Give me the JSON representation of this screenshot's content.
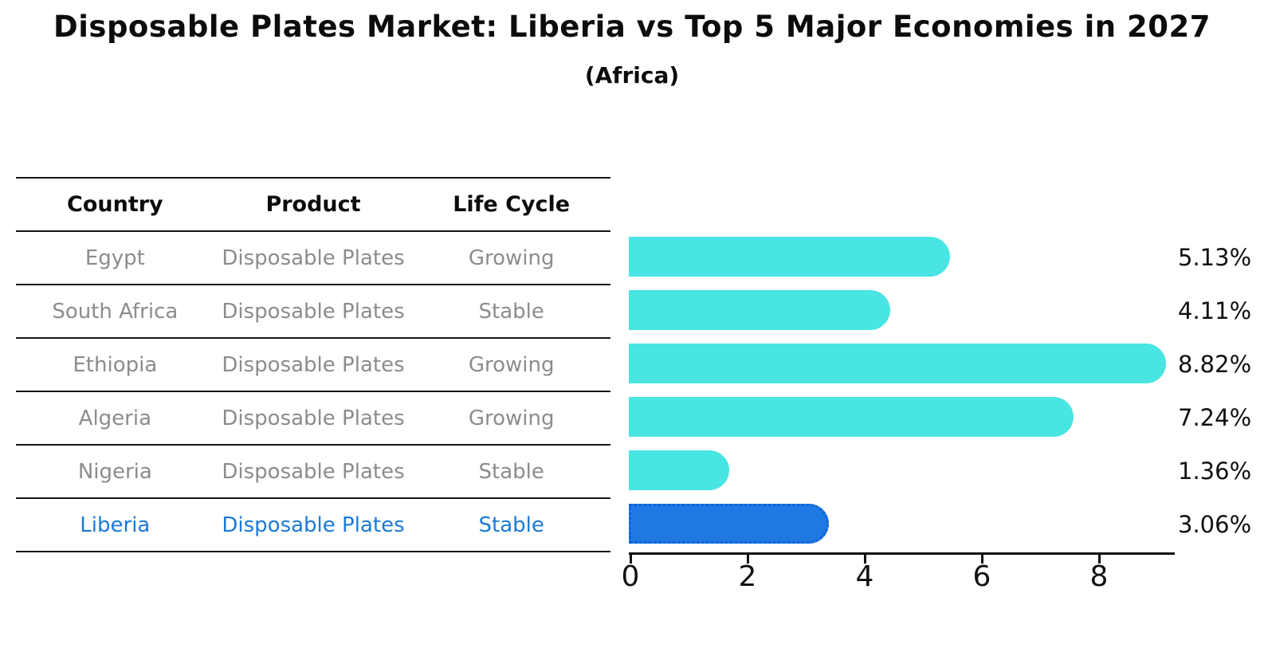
{
  "chart_data": {
    "type": "bar",
    "orientation": "horizontal",
    "title": "Disposable Plates Market: Liberia vs Top 5 Major Economies in 2027",
    "subtitle": "(Africa)",
    "categories": [
      "Egypt",
      "South Africa",
      "Ethiopia",
      "Algeria",
      "Nigeria",
      "Liberia"
    ],
    "values": [
      5.13,
      4.11,
      8.82,
      7.24,
      1.36,
      3.06
    ],
    "value_labels": [
      "5.13%",
      "4.11%",
      "8.82%",
      "7.24%",
      "1.36%",
      "3.06%"
    ],
    "x_ticks": [
      0,
      2,
      4,
      6,
      8
    ],
    "xlim": [
      0,
      9.3
    ],
    "grid": false,
    "legend": "none",
    "bar_color": "#48e5e3",
    "highlight_color": "#2079e2",
    "highlight_border_color": "#0f62d6",
    "highlight_index": 5,
    "value_label_color": "#111111"
  },
  "table": {
    "headers": [
      "Country",
      "Product",
      "Life Cycle"
    ],
    "rows": [
      {
        "country": "Egypt",
        "product": "Disposable Plates",
        "life_cycle": "Growing"
      },
      {
        "country": "South Africa",
        "product": "Disposable Plates",
        "life_cycle": "Stable"
      },
      {
        "country": "Ethiopia",
        "product": "Disposable Plates",
        "life_cycle": "Growing"
      },
      {
        "country": "Algeria",
        "product": "Disposable Plates",
        "life_cycle": "Growing"
      },
      {
        "country": "Nigeria",
        "product": "Disposable Plates",
        "life_cycle": "Stable"
      },
      {
        "country": "Liberia",
        "product": "Disposable Plates",
        "life_cycle": "Stable"
      }
    ],
    "text_color": "#8c8c8c",
    "highlight_text_color": "#1b7ad8"
  }
}
